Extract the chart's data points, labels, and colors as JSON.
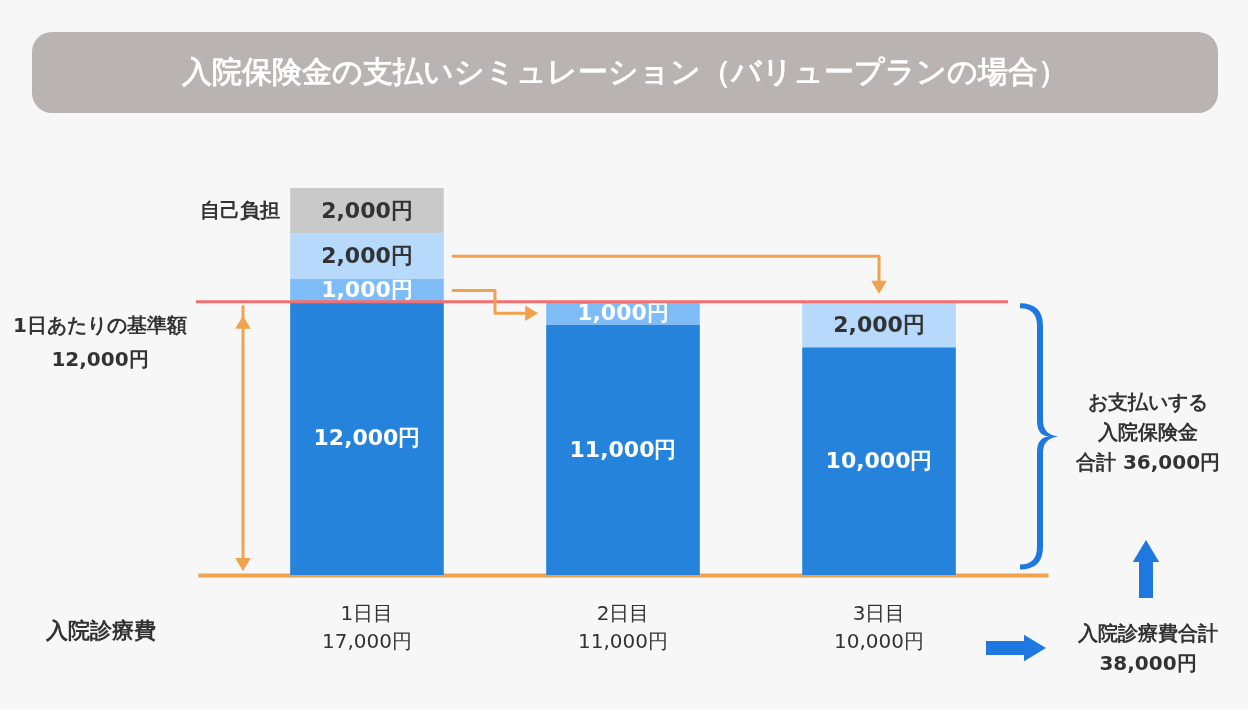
{
  "chart_data": {
    "type": "bar",
    "title": "入院保険金の支払いシミュレーション（バリュープランの場合）",
    "xlabel": "入院診療費",
    "categories": [
      "1日目\n17,000円",
      "2日目\n11,000円",
      "3日目\n10,000円"
    ],
    "stacked": true,
    "series": [
      {
        "color": "#2683dc",
        "values": [
          12000,
          11000,
          10000
        ],
        "value_labels": [
          "12,000円",
          "11,000円",
          "10,000円"
        ]
      },
      {
        "color": "#7dbcf6",
        "values": [
          1000,
          1000,
          null
        ],
        "value_labels": [
          "1,000円",
          "1,000円",
          null
        ]
      },
      {
        "color": "#b6d9fc",
        "values": [
          2000,
          null,
          2000
        ],
        "value_labels": [
          "2,000円",
          null,
          "2,000円"
        ]
      },
      {
        "name": "自己負担",
        "color": "#c9c9c9",
        "values": [
          2000,
          null,
          null
        ],
        "value_labels": [
          "2,000円",
          null,
          null
        ]
      }
    ],
    "ref_lines": [
      {
        "axis": "y",
        "value": 12000,
        "label": "1日あたりの基準額12,000円",
        "color": "#f56f6f"
      }
    ],
    "annotations": [
      "お支払いする",
      "入院保険金",
      "合計 36,000円",
      "入院診療費合計38,000円"
    ],
    "legend": false
  }
}
